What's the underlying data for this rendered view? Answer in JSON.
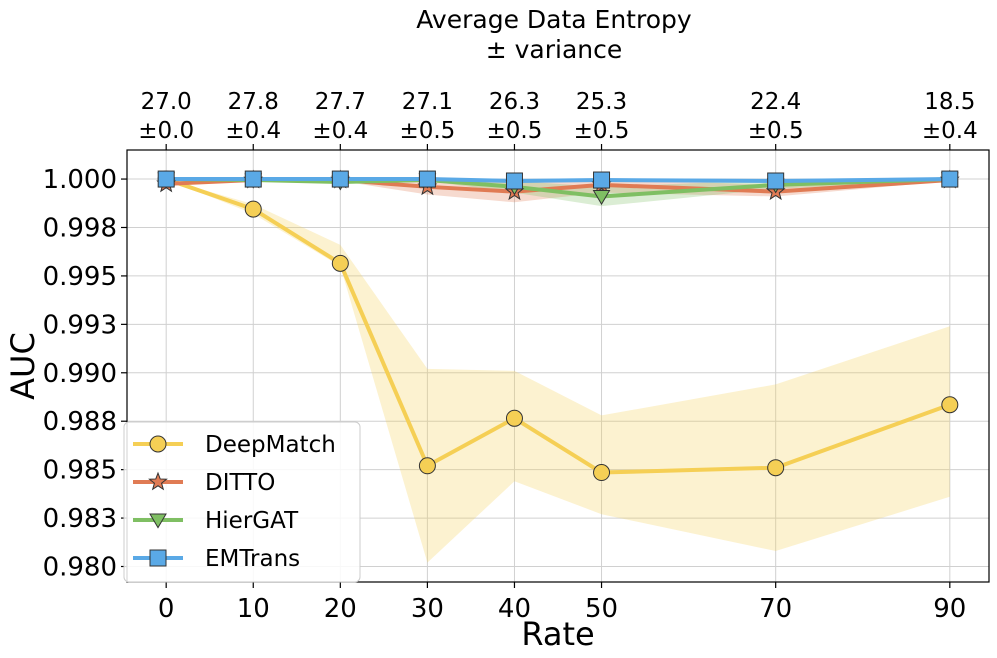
{
  "chart_data": {
    "type": "line",
    "x": [
      0,
      10,
      20,
      30,
      40,
      50,
      70,
      90
    ],
    "xlabel": "Rate",
    "ylabel": "AUC",
    "ylim": [
      0.9792,
      1.0015
    ],
    "xlim": [
      -4.5,
      94.5
    ],
    "yticks": [
      0.98,
      0.9825,
      0.985,
      0.9875,
      0.99,
      0.9925,
      0.995,
      0.9975,
      1.0
    ],
    "ytick_labels": [
      "0.980",
      "0.983",
      "0.985",
      "0.988",
      "0.990",
      "0.993",
      "0.995",
      "0.998",
      "1.000"
    ],
    "xtick_labels": [
      "0",
      "10",
      "20",
      "30",
      "40",
      "50",
      "70",
      "90"
    ],
    "top_axis": {
      "title_line1": "Average Data Entropy",
      "title_line2": "± variance",
      "labels": [
        {
          "value": "27.0",
          "variance": "±0.0"
        },
        {
          "value": "27.8",
          "variance": "±0.4"
        },
        {
          "value": "27.7",
          "variance": "±0.4"
        },
        {
          "value": "27.1",
          "variance": "±0.5"
        },
        {
          "value": "26.3",
          "variance": "±0.5"
        },
        {
          "value": "25.3",
          "variance": "±0.5"
        },
        {
          "value": "22.4",
          "variance": "±0.5"
        },
        {
          "value": "18.5",
          "variance": "±0.4"
        }
      ]
    },
    "grid": true,
    "legend_position": "lower-left",
    "series": [
      {
        "name": "DeepMatch",
        "color": "#f5cf55",
        "marker": "circle",
        "values": [
          1.0,
          0.99845,
          0.99565,
          0.9852,
          0.98765,
          0.98485,
          0.9851,
          0.98835
        ],
        "lower": [
          1.0,
          0.9982,
          0.9955,
          0.9802,
          0.9844,
          0.9827,
          0.9808,
          0.9836
        ],
        "upper": [
          1.0,
          0.9987,
          0.9966,
          0.9902,
          0.9901,
          0.9878,
          0.9894,
          0.9924
        ]
      },
      {
        "name": "DITTO",
        "color": "#e07b54",
        "marker": "star",
        "values": [
          0.99975,
          0.99995,
          0.99995,
          0.9996,
          0.99935,
          0.9997,
          0.99935,
          0.99995
        ],
        "lower": [
          0.99975,
          0.9999,
          0.9999,
          0.9992,
          0.9988,
          0.9993,
          0.9991,
          0.9999
        ],
        "upper": [
          0.99985,
          1.0,
          1.0,
          0.99995,
          0.9999,
          1.0,
          0.9997,
          1.0
        ]
      },
      {
        "name": "HierGAT",
        "color": "#7fbf63",
        "marker": "triangle-down",
        "values": [
          1.0,
          0.99995,
          0.99985,
          0.99995,
          0.9996,
          0.9991,
          0.9997,
          1.0
        ],
        "lower": [
          1.0,
          0.9999,
          0.9998,
          0.9999,
          0.9993,
          0.9986,
          0.9995,
          0.9999
        ],
        "upper": [
          1.0,
          1.0,
          1.0,
          1.0,
          0.9999,
          0.9996,
          0.99995,
          1.0
        ]
      },
      {
        "name": "EMTrans",
        "color": "#5aa9e6",
        "marker": "square",
        "values": [
          1.0,
          1.0,
          1.0,
          1.0,
          0.9999,
          0.99995,
          0.9999,
          1.0
        ],
        "lower": [
          1.0,
          1.0,
          1.0,
          1.0,
          0.9998,
          0.9999,
          0.9998,
          1.0
        ],
        "upper": [
          1.0,
          1.0,
          1.0,
          1.0,
          1.0,
          1.0,
          1.0,
          1.0
        ]
      }
    ]
  }
}
